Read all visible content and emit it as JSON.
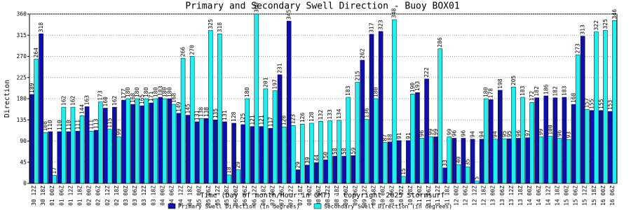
{
  "chart_data": {
    "type": "bar",
    "title": "Primary and Secondary Swell Direction - Buoy BOX01",
    "x_label": "Time (Day of month/Hour in GMT) - Copyright 2025 Stormsurf",
    "y_label": "Direction",
    "categories": [
      "30 12Z",
      "30 18Z",
      "01 00Z",
      "01 06Z",
      "01 12Z",
      "01 18Z",
      "02 00Z",
      "02 06Z",
      "02 12Z",
      "02 18Z",
      "03 00Z",
      "03 06Z",
      "03 12Z",
      "03 18Z",
      "04 00Z",
      "04 06Z",
      "04 12Z",
      "04 18Z",
      "05 00Z",
      "05 06Z",
      "05 12Z",
      "05 18Z",
      "06 00Z",
      "06 06Z",
      "06 12Z",
      "06 18Z",
      "07 00Z",
      "07 06Z",
      "07 12Z",
      "07 18Z",
      "08 00Z",
      "08 06Z",
      "08 12Z",
      "08 18Z",
      "09 00Z",
      "09 06Z",
      "09 12Z",
      "09 18Z",
      "10 00Z",
      "10 06Z",
      "10 12Z",
      "10 18Z",
      "11 00Z",
      "11 06Z",
      "11 12Z",
      "11 18Z",
      "12 00Z",
      "12 06Z",
      "12 12Z",
      "12 18Z",
      "13 00Z",
      "13 06Z",
      "13 12Z",
      "13 18Z",
      "14 00Z",
      "14 06Z",
      "14 12Z",
      "14 18Z",
      "15 00Z",
      "15 06Z",
      "15 12Z",
      "15 18Z",
      "16 00Z",
      "16 06Z"
    ],
    "series": [
      {
        "name": "Primary Swell Direction (in degrees)",
        "color": "#1010a8",
        "values": [
          189,
          318,
          110,
          110,
          110,
          111,
          163,
          113,
          160,
          162,
          177,
          168,
          165,
          171,
          183,
          180,
          149,
          145,
          131,
          138,
          135,
          131,
          128,
          125,
          121,
          121,
          117,
          231,
          345,
          29,
          39,
          44,
          50,
          58,
          58,
          59,
          262,
          317,
          323,
          88,
          91,
          91,
          193,
          222,
          99,
          33,
          96,
          96,
          94,
          94,
          178,
          198,
          95,
          96,
          97,
          182,
          186,
          182,
          183,
          168,
          313,
          155,
          155,
          153
        ]
      },
      {
        "name": "Secondary Swell Direction (in degrees)",
        "color": "#22eeee",
        "values": [
          264,
          108,
          17,
          162,
          162,
          144,
          111,
          173,
          115,
          99,
          180,
          180,
          180,
          180,
          180,
          168,
          266,
          270,
          138,
          325,
          318,
          18,
          29,
          180,
          360,
          201,
          197,
          120,
          123,
          126,
          128,
          132,
          133,
          134,
          183,
          215,
          136,
          180,
          87,
          348,
          15,
          190,
          96,
          99,
          286,
          99,
          40,
          35,
          5,
          180,
          94,
          95,
          205,
          183,
          172,
          99,
          100,
          96,
          93,
          273,
          157,
          322,
          325,
          346
        ]
      }
    ],
    "ylim": [
      0,
      360
    ],
    "yticks": [
      0,
      45,
      90,
      135,
      180,
      225,
      270,
      315,
      360
    ],
    "grid": true
  }
}
